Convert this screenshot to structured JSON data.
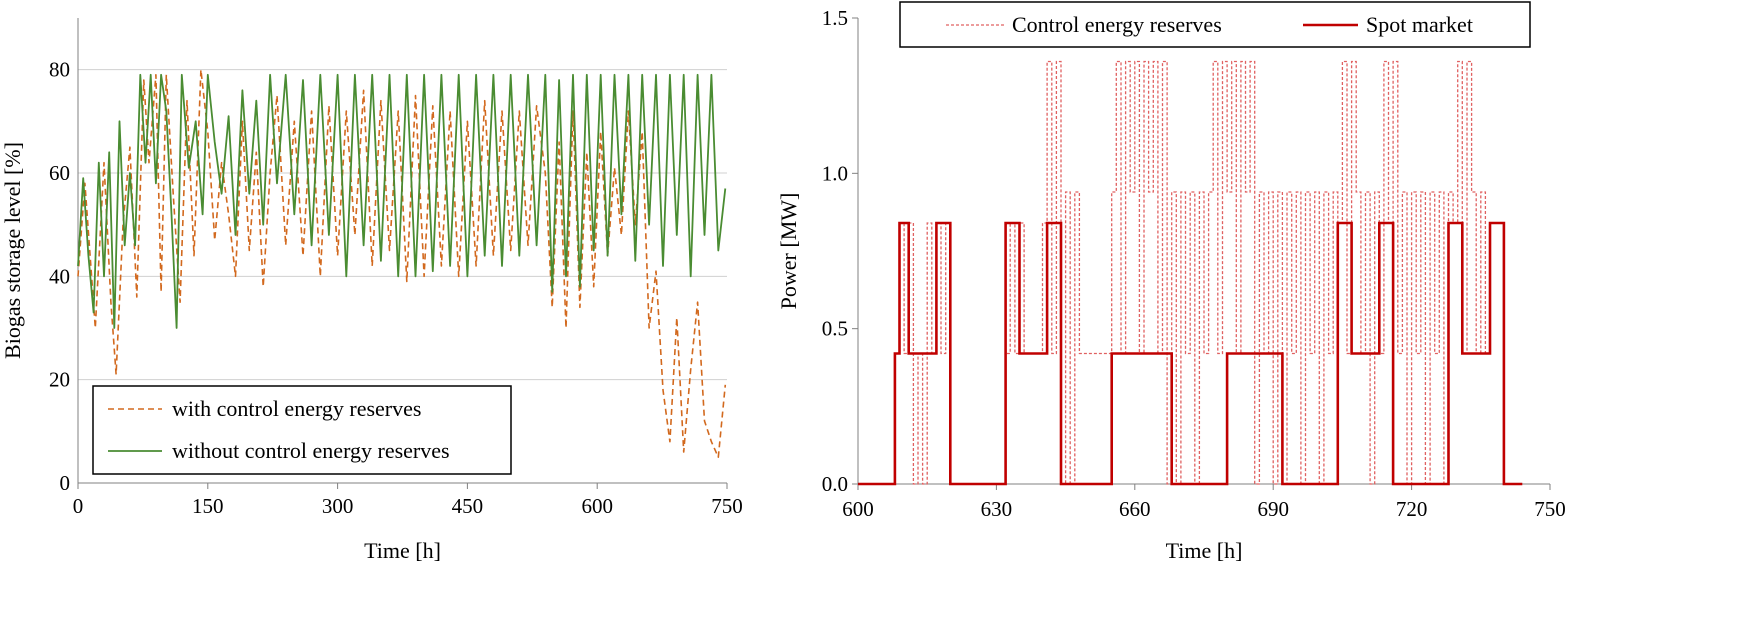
{
  "chart_data": [
    {
      "type": "line",
      "xlabel": "Time [h]",
      "ylabel": "Biogas storage level [%]",
      "xlim": [
        0,
        750
      ],
      "ylim": [
        0,
        90
      ],
      "xticks": [
        "0",
        "150",
        "300",
        "450",
        "600",
        "750"
      ],
      "yticks": [
        "0",
        "20",
        "40",
        "60",
        "80"
      ],
      "grid": "horizontal",
      "legend_position": "bottom-left",
      "colors": {
        "with": "#d2691e",
        "without": "#4a8c32"
      },
      "series": [
        {
          "name": "with control energy reserves",
          "style": "dashed",
          "x": [
            0,
            8,
            20,
            30,
            38,
            44,
            52,
            60,
            68,
            76,
            82,
            90,
            96,
            102,
            110,
            118,
            126,
            134,
            142,
            150,
            158,
            166,
            174,
            182,
            190,
            198,
            206,
            214,
            222,
            230,
            240,
            250,
            260,
            270,
            280,
            290,
            300,
            310,
            320,
            330,
            340,
            350,
            360,
            370,
            380,
            390,
            400,
            410,
            420,
            430,
            440,
            450,
            460,
            470,
            480,
            490,
            500,
            510,
            520,
            530,
            540,
            548,
            556,
            564,
            572,
            580,
            588,
            596,
            604,
            612,
            620,
            628,
            636,
            644,
            652,
            660,
            668,
            676,
            684,
            692,
            700,
            708,
            716,
            724,
            732,
            740,
            748
          ],
          "y": [
            40,
            58,
            30,
            62,
            35,
            21,
            50,
            65,
            36,
            78,
            62,
            79,
            37,
            79,
            56,
            35,
            74,
            44,
            80,
            68,
            47,
            62,
            52,
            40,
            70,
            45,
            64,
            38,
            60,
            75,
            46,
            70,
            44,
            72,
            40,
            73,
            44,
            72,
            48,
            76,
            42,
            74,
            45,
            72,
            39,
            75,
            40,
            73,
            42,
            72,
            40,
            70,
            42,
            74,
            44,
            72,
            45,
            72,
            46,
            73,
            60,
            34,
            66,
            30,
            72,
            34,
            64,
            38,
            68,
            44,
            61,
            48,
            72,
            50,
            68,
            30,
            41,
            18,
            8,
            32,
            6,
            22,
            35,
            12,
            8,
            5,
            19
          ]
        },
        {
          "name": "without control energy reserves",
          "style": "solid",
          "x": [
            0,
            6,
            12,
            18,
            24,
            30,
            36,
            42,
            48,
            54,
            60,
            66,
            72,
            78,
            84,
            90,
            96,
            102,
            108,
            114,
            120,
            128,
            136,
            144,
            150,
            158,
            166,
            174,
            182,
            190,
            198,
            206,
            214,
            222,
            230,
            240,
            250,
            260,
            270,
            280,
            290,
            300,
            310,
            320,
            330,
            340,
            350,
            360,
            370,
            380,
            390,
            400,
            410,
            420,
            430,
            440,
            450,
            460,
            470,
            480,
            490,
            500,
            510,
            520,
            530,
            540,
            548,
            556,
            564,
            572,
            580,
            588,
            596,
            604,
            612,
            620,
            628,
            636,
            644,
            652,
            660,
            668,
            676,
            684,
            692,
            700,
            708,
            716,
            724,
            732,
            740,
            748
          ],
          "y": [
            42,
            59,
            44,
            33,
            62,
            40,
            64,
            30,
            70,
            46,
            60,
            46,
            79,
            62,
            79,
            58,
            79,
            72,
            52,
            30,
            79,
            61,
            70,
            52,
            79,
            66,
            56,
            71,
            48,
            76,
            56,
            74,
            50,
            79,
            58,
            79,
            52,
            78,
            46,
            79,
            48,
            79,
            40,
            79,
            46,
            79,
            43,
            79,
            40,
            79,
            40,
            79,
            41,
            79,
            42,
            79,
            40,
            79,
            44,
            79,
            42,
            79,
            44,
            79,
            46,
            79,
            37,
            78,
            40,
            79,
            38,
            79,
            45,
            79,
            44,
            79,
            52,
            79,
            43,
            79,
            50,
            79,
            42,
            79,
            48,
            79,
            40,
            79,
            48,
            79,
            45,
            57
          ]
        }
      ]
    },
    {
      "type": "line",
      "xlabel": "Time [h]",
      "ylabel": "Power [MW]",
      "xlim": [
        600,
        750
      ],
      "ylim": [
        0,
        1.5
      ],
      "xticks": [
        "600",
        "630",
        "660",
        "690",
        "720",
        "750"
      ],
      "yticks": [
        "0.0",
        "0.5",
        "1.0",
        "1.5"
      ],
      "grid": "none",
      "legend_position": "top",
      "colors": {
        "reserves": "#e06060",
        "spot": "#c00000"
      },
      "series": [
        {
          "name": "Control energy reserves",
          "style": "dotted",
          "x": [
            608,
            609,
            610,
            611,
            612,
            613,
            614,
            615,
            616,
            617,
            618,
            619,
            620,
            632,
            633,
            634,
            635,
            636,
            640,
            641,
            642,
            643,
            644,
            645,
            646,
            647,
            648,
            655,
            656,
            657,
            658,
            659,
            660,
            661,
            662,
            663,
            664,
            665,
            666,
            667,
            668,
            669,
            670,
            671,
            672,
            673,
            674,
            675,
            676,
            677,
            678,
            679,
            680,
            681,
            682,
            683,
            684,
            685,
            686,
            687,
            688,
            689,
            690,
            691,
            692,
            693,
            694,
            695,
            696,
            697,
            698,
            699,
            700,
            701,
            702,
            703,
            704,
            705,
            706,
            707,
            708,
            709,
            710,
            711,
            712,
            713,
            714,
            715,
            716,
            717,
            718,
            719,
            720,
            721,
            722,
            723,
            724,
            725,
            726,
            727,
            728,
            729,
            730,
            731,
            732,
            733,
            734,
            735,
            736
          ],
          "y": [
            0.42,
            0.84,
            0.42,
            0.84,
            0.0,
            0.42,
            0.0,
            0.84,
            0.42,
            0.84,
            0.42,
            0.84,
            0.0,
            0.42,
            0.84,
            0.42,
            0.84,
            0.42,
            0.84,
            1.36,
            0.42,
            1.36,
            0.0,
            0.94,
            0.0,
            0.94,
            0.42,
            0.94,
            1.36,
            0.42,
            1.36,
            0.94,
            1.36,
            0.42,
            1.36,
            0.94,
            1.36,
            0.42,
            1.36,
            0.0,
            0.94,
            0.0,
            0.94,
            0.42,
            0.94,
            0.0,
            0.94,
            0.42,
            0.94,
            1.36,
            0.42,
            1.36,
            0.94,
            1.36,
            0.42,
            1.36,
            0.94,
            1.36,
            0.0,
            0.94,
            0.42,
            0.94,
            0.0,
            0.94,
            0.0,
            0.94,
            0.42,
            0.94,
            0.0,
            0.94,
            0.42,
            0.94,
            0.0,
            0.94,
            0.42,
            0.94,
            0.84,
            1.36,
            0.42,
            1.36,
            0.94,
            0.42,
            0.94,
            0.0,
            0.94,
            0.42,
            1.36,
            0.84,
            1.36,
            0.42,
            0.94,
            0.0,
            0.94,
            0.42,
            0.94,
            0.0,
            0.94,
            0.42,
            0.94,
            0.0,
            0.94,
            0.84,
            1.36,
            0.42,
            1.36,
            0.94,
            0.42,
            0.94,
            0.42
          ]
        },
        {
          "name": "Spot market",
          "style": "solid",
          "x": [
            600,
            608,
            608,
            609,
            609,
            611,
            611,
            617,
            617,
            620,
            620,
            632,
            632,
            635,
            635,
            641,
            641,
            644,
            644,
            655,
            655,
            656,
            656,
            668,
            668,
            680,
            680,
            692,
            692,
            704,
            704,
            707,
            707,
            713,
            713,
            716,
            716,
            728,
            728,
            731,
            731,
            737,
            737,
            740,
            740,
            744
          ],
          "y": [
            0.0,
            0.0,
            0.42,
            0.42,
            0.84,
            0.84,
            0.42,
            0.42,
            0.84,
            0.84,
            0.0,
            0.0,
            0.84,
            0.84,
            0.42,
            0.42,
            0.84,
            0.84,
            0.0,
            0.0,
            0.42,
            0.42,
            0.42,
            0.42,
            0.0,
            0.0,
            0.42,
            0.42,
            0.0,
            0.0,
            0.84,
            0.84,
            0.42,
            0.42,
            0.84,
            0.84,
            0.0,
            0.0,
            0.84,
            0.84,
            0.42,
            0.42,
            0.84,
            0.84,
            0.0,
            0.0
          ]
        }
      ]
    }
  ]
}
